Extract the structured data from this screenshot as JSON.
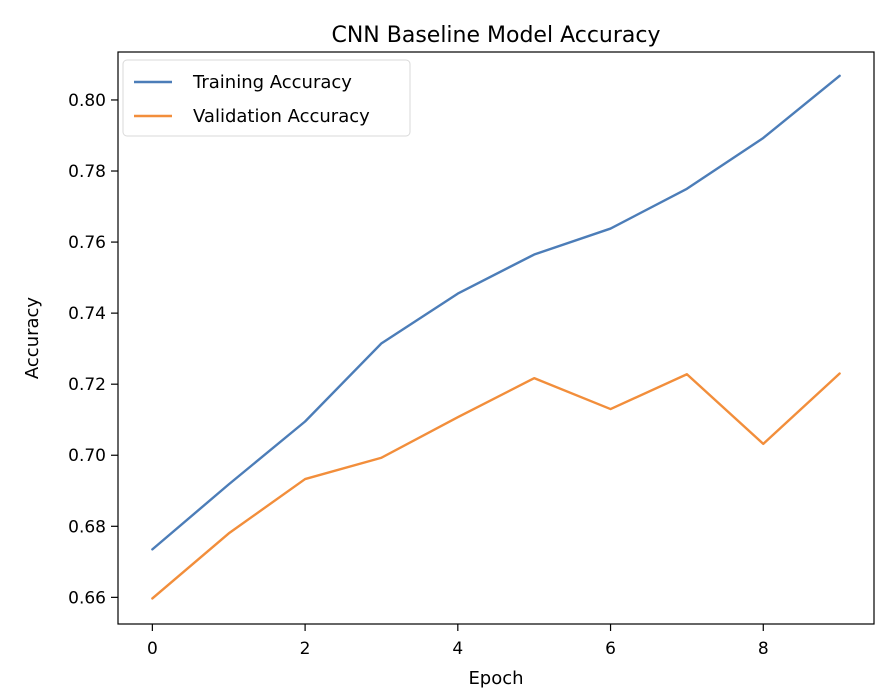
{
  "chart_data": {
    "type": "line",
    "title": "CNN Baseline Model Accuracy",
    "xlabel": "Epoch",
    "ylabel": "Accuracy",
    "x": [
      0,
      1,
      2,
      3,
      4,
      5,
      6,
      7,
      8,
      9
    ],
    "xlim": [
      -0.45,
      9.45
    ],
    "ylim": [
      0.6525,
      0.8135
    ],
    "xticks": [
      0,
      2,
      4,
      6,
      8
    ],
    "xtick_labels": [
      "0",
      "2",
      "4",
      "6",
      "8"
    ],
    "yticks": [
      0.66,
      0.68,
      0.7,
      0.72,
      0.74,
      0.76,
      0.78,
      0.8
    ],
    "ytick_labels": [
      "0.66",
      "0.68",
      "0.70",
      "0.72",
      "0.74",
      "0.76",
      "0.78",
      "0.80"
    ],
    "grid": false,
    "legend_position": "upper left",
    "series": [
      {
        "name": "Training Accuracy",
        "color": "#4c7db8",
        "values": [
          0.6735,
          0.6918,
          0.7095,
          0.7315,
          0.7455,
          0.7565,
          0.7638,
          0.775,
          0.7893,
          0.8068
        ]
      },
      {
        "name": "Validation Accuracy",
        "color": "#f28e3b",
        "values": [
          0.6597,
          0.678,
          0.6933,
          0.6993,
          0.7107,
          0.7217,
          0.713,
          0.7228,
          0.7032,
          0.723
        ]
      }
    ]
  }
}
